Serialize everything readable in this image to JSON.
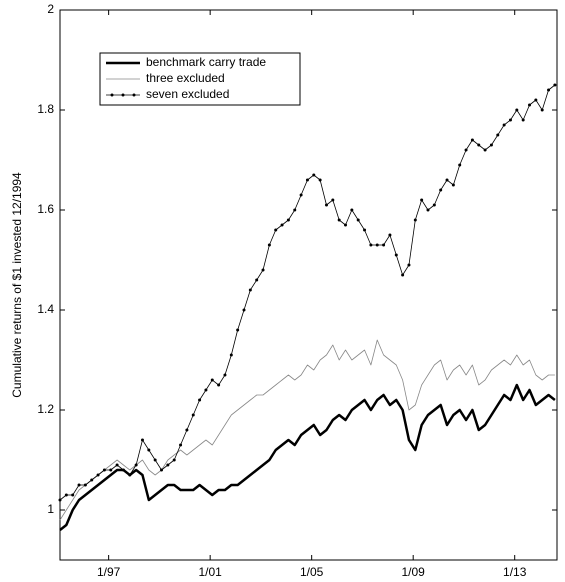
{
  "chart_data": {
    "type": "line",
    "ylabel": "Cumulative  returns of $1 invested 12/1994",
    "x": [
      "1995-02",
      "1995-05",
      "1995-08",
      "1995-11",
      "1996-02",
      "1996-05",
      "1996-08",
      "1996-11",
      "1997-02",
      "1997-05",
      "1997-08",
      "1997-11",
      "1998-02",
      "1998-05",
      "1998-08",
      "1998-11",
      "1999-02",
      "1999-05",
      "1999-08",
      "1999-11",
      "2000-02",
      "2000-05",
      "2000-08",
      "2000-11",
      "2001-02",
      "2001-05",
      "2001-08",
      "2001-11",
      "2002-02",
      "2002-05",
      "2002-08",
      "2002-11",
      "2003-02",
      "2003-05",
      "2003-08",
      "2003-11",
      "2004-02",
      "2004-05",
      "2004-08",
      "2004-11",
      "2005-02",
      "2005-05",
      "2005-08",
      "2005-11",
      "2006-02",
      "2006-05",
      "2006-08",
      "2006-11",
      "2007-02",
      "2007-05",
      "2007-08",
      "2007-11",
      "2008-02",
      "2008-05",
      "2008-08",
      "2008-11",
      "2009-02",
      "2009-05",
      "2009-08",
      "2009-11",
      "2010-02",
      "2010-05",
      "2010-08",
      "2010-11",
      "2011-02",
      "2011-05",
      "2011-08",
      "2011-11",
      "2012-02",
      "2012-05",
      "2012-08",
      "2012-11",
      "2013-02",
      "2013-05",
      "2013-08",
      "2013-11",
      "2014-02",
      "2014-05",
      "2014-08"
    ],
    "series": [
      {
        "name": "benchmark carry trade",
        "color": "#000000",
        "width": 2.5,
        "marker": false,
        "values": [
          0.96,
          0.97,
          1.0,
          1.02,
          1.03,
          1.04,
          1.05,
          1.06,
          1.07,
          1.08,
          1.08,
          1.07,
          1.08,
          1.07,
          1.02,
          1.03,
          1.04,
          1.05,
          1.05,
          1.04,
          1.04,
          1.04,
          1.05,
          1.04,
          1.03,
          1.04,
          1.04,
          1.05,
          1.05,
          1.06,
          1.07,
          1.08,
          1.09,
          1.1,
          1.12,
          1.13,
          1.14,
          1.13,
          1.15,
          1.16,
          1.17,
          1.15,
          1.16,
          1.18,
          1.19,
          1.18,
          1.2,
          1.21,
          1.22,
          1.2,
          1.22,
          1.23,
          1.21,
          1.22,
          1.2,
          1.14,
          1.12,
          1.17,
          1.19,
          1.2,
          1.21,
          1.17,
          1.19,
          1.2,
          1.18,
          1.2,
          1.16,
          1.17,
          1.19,
          1.21,
          1.23,
          1.22,
          1.25,
          1.22,
          1.24,
          1.21,
          1.22,
          1.23,
          1.22
        ]
      },
      {
        "name": "three excluded",
        "color": "#888888",
        "width": 0.8,
        "marker": false,
        "values": [
          0.98,
          1.0,
          1.02,
          1.04,
          1.05,
          1.06,
          1.07,
          1.08,
          1.09,
          1.1,
          1.09,
          1.08,
          1.09,
          1.1,
          1.08,
          1.07,
          1.08,
          1.1,
          1.11,
          1.12,
          1.11,
          1.12,
          1.13,
          1.14,
          1.13,
          1.15,
          1.17,
          1.19,
          1.2,
          1.21,
          1.22,
          1.23,
          1.23,
          1.24,
          1.25,
          1.26,
          1.27,
          1.26,
          1.27,
          1.29,
          1.28,
          1.3,
          1.31,
          1.33,
          1.3,
          1.32,
          1.3,
          1.31,
          1.32,
          1.29,
          1.34,
          1.31,
          1.3,
          1.29,
          1.26,
          1.2,
          1.21,
          1.25,
          1.27,
          1.29,
          1.3,
          1.26,
          1.28,
          1.29,
          1.27,
          1.29,
          1.25,
          1.26,
          1.28,
          1.29,
          1.3,
          1.29,
          1.31,
          1.29,
          1.3,
          1.27,
          1.26,
          1.27,
          1.27
        ]
      },
      {
        "name": "seven excluded",
        "color": "#000000",
        "width": 0.8,
        "marker": true,
        "values": [
          1.02,
          1.03,
          1.03,
          1.05,
          1.05,
          1.06,
          1.07,
          1.08,
          1.08,
          1.09,
          1.08,
          1.07,
          1.09,
          1.14,
          1.12,
          1.1,
          1.08,
          1.09,
          1.1,
          1.13,
          1.16,
          1.19,
          1.22,
          1.24,
          1.26,
          1.25,
          1.27,
          1.31,
          1.36,
          1.4,
          1.44,
          1.46,
          1.48,
          1.53,
          1.56,
          1.57,
          1.58,
          1.6,
          1.63,
          1.66,
          1.67,
          1.66,
          1.61,
          1.62,
          1.58,
          1.57,
          1.6,
          1.58,
          1.56,
          1.53,
          1.53,
          1.53,
          1.55,
          1.51,
          1.47,
          1.49,
          1.58,
          1.62,
          1.6,
          1.61,
          1.64,
          1.66,
          1.65,
          1.69,
          1.72,
          1.74,
          1.73,
          1.72,
          1.73,
          1.75,
          1.77,
          1.78,
          1.8,
          1.78,
          1.81,
          1.82,
          1.8,
          1.84,
          1.85
        ]
      }
    ],
    "xlim": [
      "1995-02",
      "2014-09"
    ],
    "xticks": [
      {
        "value": "1997-01",
        "label": "1/97"
      },
      {
        "value": "2001-01",
        "label": "1/01"
      },
      {
        "value": "2005-01",
        "label": "1/05"
      },
      {
        "value": "2009-01",
        "label": "1/09"
      },
      {
        "value": "2013-01",
        "label": "1/13"
      }
    ],
    "ylim": [
      0.9,
      2
    ],
    "yticks": [
      1,
      1.2,
      1.4,
      1.6,
      1.8,
      2
    ],
    "grid": false,
    "legend": "top-left"
  }
}
